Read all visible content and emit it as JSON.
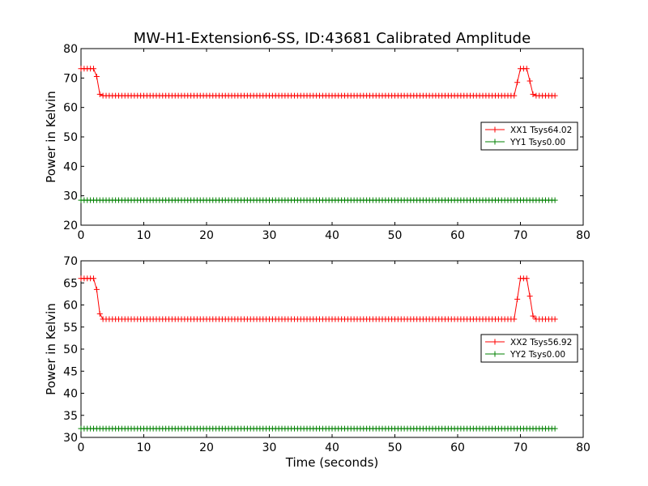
{
  "title": "MW-H1-Extension6-SS, ID:43681 Calibrated Amplitude",
  "chart_data": [
    {
      "type": "line",
      "title": "MW-H1-Extension6-SS, ID:43681 Calibrated Amplitude",
      "xlabel": "",
      "ylabel": "Power in Kelvin",
      "xlim": [
        0,
        80
      ],
      "ylim": [
        20,
        80
      ],
      "xticks": [
        "0",
        "10",
        "20",
        "30",
        "40",
        "50",
        "60",
        "70",
        "80"
      ],
      "yticks": [
        "20",
        "30",
        "40",
        "50",
        "60",
        "70",
        "80"
      ],
      "grid": false,
      "legend_position": "right",
      "marker": "plus",
      "series": [
        {
          "name": "XX1 Tsys64.02",
          "color": "#ff0000",
          "sample_spacing": 0.5,
          "segments": [
            {
              "x": [
                0,
                2
              ],
              "y": 73.2
            },
            {
              "x": [
                2.5
              ],
              "y": 70.5
            },
            {
              "x": [
                3
              ],
              "y": 64.5
            },
            {
              "x": [
                3.5,
                69
              ],
              "y": 64.0
            },
            {
              "x": [
                69.5
              ],
              "y": 68.5
            },
            {
              "x": [
                70,
                71
              ],
              "y": 73.2
            },
            {
              "x": [
                71.5
              ],
              "y": 69.0
            },
            {
              "x": [
                72
              ],
              "y": 64.5
            },
            {
              "x": [
                72.5,
                75.5
              ],
              "y": 64.0
            }
          ]
        },
        {
          "name": "YY1 Tsys0.00",
          "color": "#008000",
          "sample_spacing": 0.5,
          "segments": [
            {
              "x": [
                0,
                75.5
              ],
              "y": 28.5
            }
          ]
        }
      ]
    },
    {
      "type": "line",
      "title": "",
      "xlabel": "Time (seconds)",
      "ylabel": "Power in Kelvin",
      "xlim": [
        0,
        80
      ],
      "ylim": [
        30,
        70
      ],
      "xticks": [
        "0",
        "10",
        "20",
        "30",
        "40",
        "50",
        "60",
        "70",
        "80"
      ],
      "yticks": [
        "30",
        "35",
        "40",
        "45",
        "50",
        "55",
        "60",
        "65",
        "70"
      ],
      "grid": false,
      "legend_position": "right",
      "marker": "plus",
      "series": [
        {
          "name": "XX2 Tsys56.92",
          "color": "#ff0000",
          "sample_spacing": 0.5,
          "segments": [
            {
              "x": [
                0,
                2
              ],
              "y": 66.0
            },
            {
              "x": [
                2.5
              ],
              "y": 63.5
            },
            {
              "x": [
                3
              ],
              "y": 58.0
            },
            {
              "x": [
                3.5,
                69
              ],
              "y": 56.8
            },
            {
              "x": [
                69.5
              ],
              "y": 61.3
            },
            {
              "x": [
                70,
                71
              ],
              "y": 66.0
            },
            {
              "x": [
                71.5
              ],
              "y": 62.0
            },
            {
              "x": [
                72
              ],
              "y": 57.5
            },
            {
              "x": [
                72.5,
                75.5
              ],
              "y": 56.8
            }
          ]
        },
        {
          "name": "YY2 Tsys0.00",
          "color": "#008000",
          "sample_spacing": 0.5,
          "segments": [
            {
              "x": [
                0,
                75.5
              ],
              "y": 32.0
            }
          ]
        }
      ]
    }
  ]
}
